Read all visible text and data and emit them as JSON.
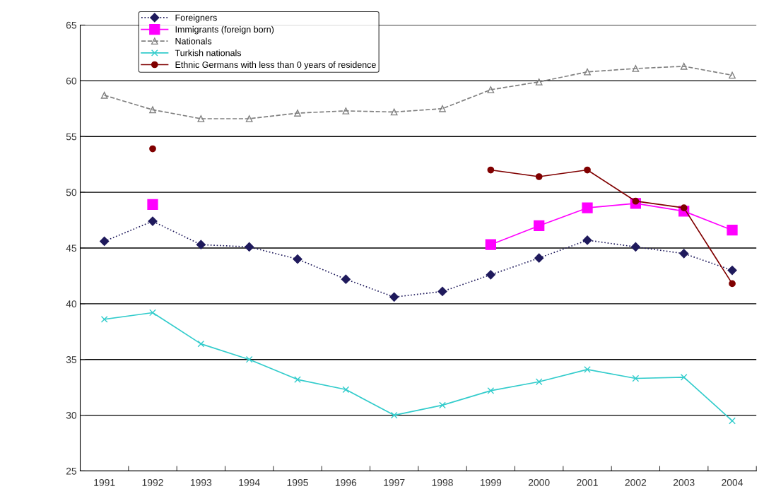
{
  "chart_data": {
    "type": "line",
    "categories": [
      "1991",
      "1992",
      "1993",
      "1994",
      "1995",
      "1996",
      "1997",
      "1998",
      "1999",
      "2000",
      "2001",
      "2002",
      "2003",
      "2004"
    ],
    "series": [
      {
        "name": "Foreigners",
        "color": "#1f1a5c",
        "marker": "diamond",
        "line_style": "dotted",
        "values": [
          45.6,
          47.4,
          45.3,
          45.1,
          44.0,
          42.2,
          40.6,
          41.1,
          42.6,
          44.1,
          45.7,
          45.1,
          44.5,
          43.0
        ]
      },
      {
        "name": "Immigrants (foreign born)",
        "color": "#ff00ff",
        "marker": "square",
        "line_style": "solid",
        "values": [
          null,
          48.9,
          null,
          null,
          null,
          null,
          null,
          null,
          45.3,
          47.0,
          48.6,
          49.0,
          48.3,
          46.6
        ]
      },
      {
        "name": "Nationals",
        "color": "#808080",
        "marker": "triangle",
        "line_style": "dashed",
        "values": [
          58.7,
          57.4,
          56.6,
          56.6,
          57.1,
          57.3,
          57.2,
          57.5,
          59.2,
          59.9,
          60.8,
          61.1,
          61.3,
          60.5
        ]
      },
      {
        "name": "Turkish nationals",
        "color": "#33cccc",
        "marker": "cross",
        "line_style": "solid",
        "values": [
          38.6,
          39.2,
          36.4,
          35.0,
          33.2,
          32.3,
          30.0,
          30.9,
          32.2,
          33.0,
          34.1,
          33.3,
          33.4,
          29.5
        ]
      },
      {
        "name": "Ethnic Germans with less than 0 years of residence",
        "color": "#800000",
        "marker": "circle",
        "line_style": "solid",
        "values": [
          null,
          53.9,
          null,
          null,
          null,
          null,
          null,
          null,
          52.0,
          51.4,
          52.0,
          49.2,
          48.6,
          41.8
        ]
      }
    ],
    "ylim": [
      25,
      65
    ],
    "yticks": [
      25,
      30,
      35,
      40,
      45,
      50,
      55,
      60,
      65
    ],
    "grid": "y",
    "legend": "top left"
  }
}
